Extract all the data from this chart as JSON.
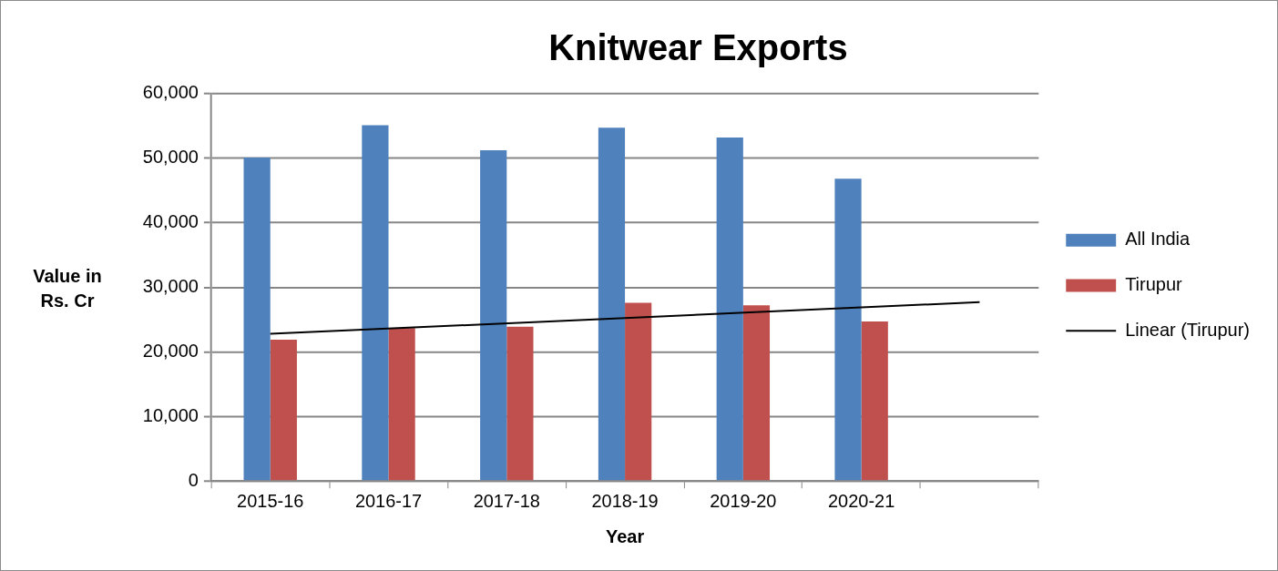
{
  "chart_data": {
    "type": "bar",
    "title": "Knitwear Exports",
    "xlabel": "Year",
    "ylabel": "Value in Rs. Cr",
    "categories": [
      "2015-16",
      "2016-17",
      "2017-18",
      "2018-19",
      "2019-20",
      "2020-21",
      null
    ],
    "series": [
      {
        "name": "All India",
        "color": "#4f81bd",
        "values": [
          50100,
          55100,
          51200,
          54700,
          53200,
          46800,
          null
        ]
      },
      {
        "name": "Tirupur",
        "color": "#c0504d",
        "values": [
          21900,
          23700,
          23900,
          27600,
          27200,
          24700,
          null
        ]
      },
      {
        "name": "Linear (Tirupur)",
        "type": "line",
        "color": "#000000",
        "values": [
          22800,
          null,
          null,
          null,
          null,
          null,
          27700
        ]
      }
    ],
    "ylim": [
      0,
      60000
    ],
    "yticks": [
      {
        "value": 0,
        "label": "0"
      },
      {
        "value": 10000,
        "label": "10,000"
      },
      {
        "value": 20000,
        "label": "20,000"
      },
      {
        "value": 30000,
        "label": "30,000"
      },
      {
        "value": 40000,
        "label": "40,000"
      },
      {
        "value": 50000,
        "label": "50,000"
      },
      {
        "value": 60000,
        "label": "60,000"
      }
    ],
    "grid": "y",
    "legend": "right",
    "marker": "none",
    "line_style": "solid"
  }
}
